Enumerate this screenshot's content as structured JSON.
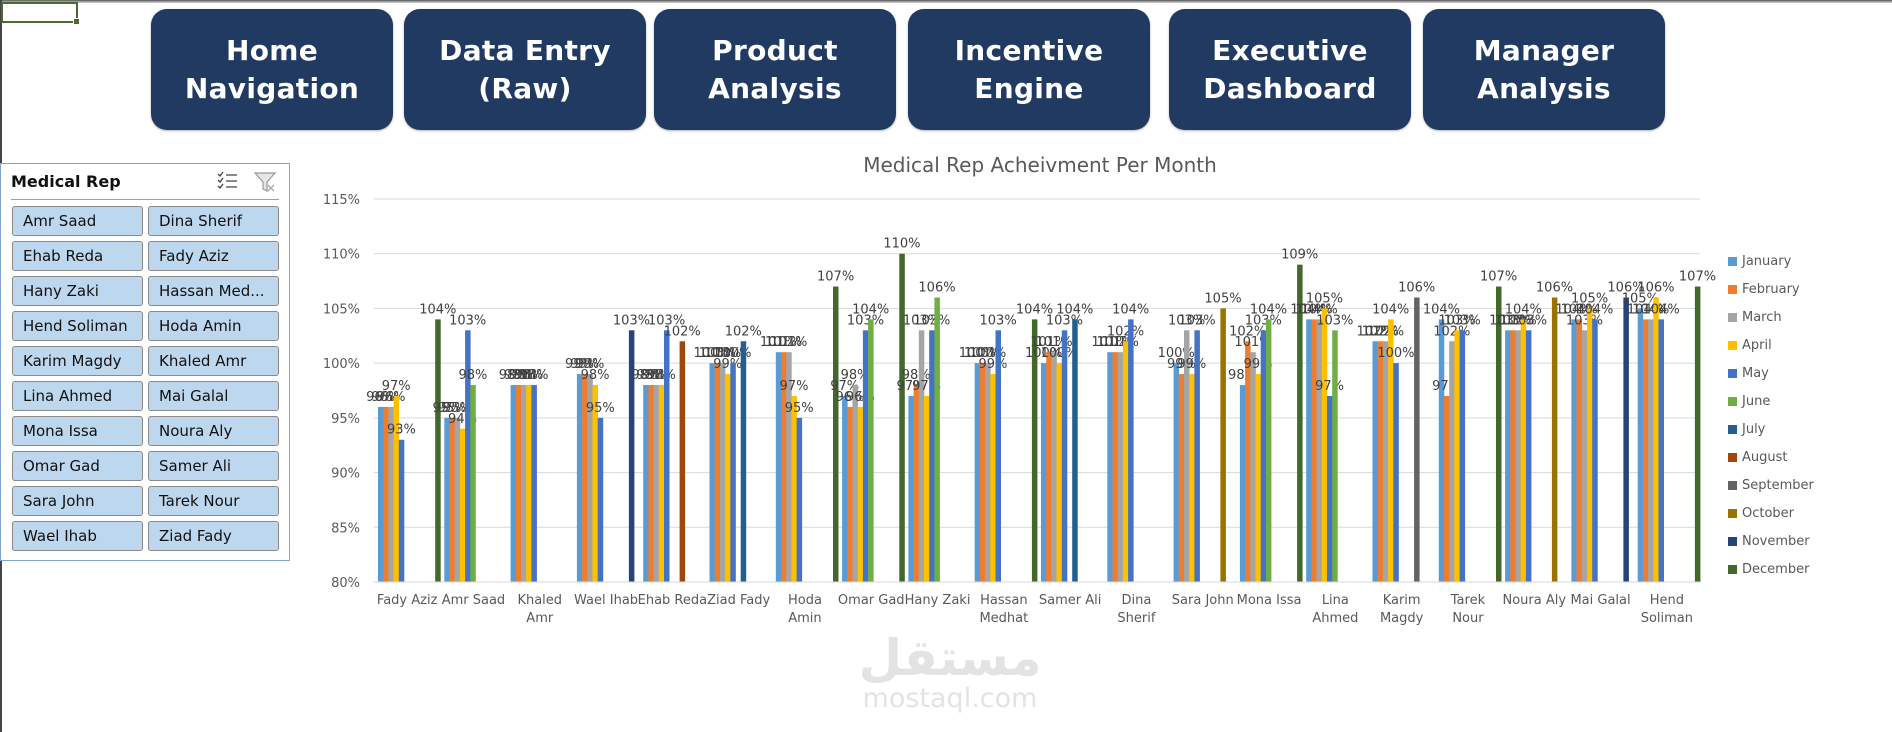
{
  "nav": {
    "buttons": [
      {
        "label": "Home\nNavigation"
      },
      {
        "label": "Data Entry\n(Raw)"
      },
      {
        "label": "Product\nAnalysis"
      },
      {
        "label": "Incentive\nEngine"
      },
      {
        "label": "Executive\nDashboard"
      },
      {
        "label": "Manager\nAnalysis"
      }
    ]
  },
  "slicer": {
    "title": "Medical Rep",
    "multi_select_icon": "multi-select-icon",
    "clear_filter_icon": "clear-filter-icon",
    "items": [
      "Amr Saad",
      "Dina Sherif",
      "Ehab Reda",
      "Fady Aziz",
      "Hany Zaki",
      "Hassan Med...",
      "Hend Soliman",
      "Hoda Amin",
      "Karim Magdy",
      "Khaled Amr",
      "Lina Ahmed",
      "Mai Galal",
      "Mona Issa",
      "Noura Aly",
      "Omar Gad",
      "Samer Ali",
      "Sara John",
      "Tarek Nour",
      "Wael Ihab",
      "Ziad Fady"
    ]
  },
  "watermark": {
    "arabic": "مستقل",
    "latin": "mostaql.com"
  },
  "chart_data": {
    "type": "bar",
    "title": "Medical Rep Acheivment Per Month",
    "xlabel": "",
    "ylabel": "",
    "ylim": [
      0.8,
      1.15
    ],
    "yticks": [
      0.8,
      0.85,
      0.9,
      0.95,
      1.0,
      1.05,
      1.1,
      1.15
    ],
    "ytick_labels": [
      "80%",
      "85%",
      "90%",
      "95%",
      "100%",
      "105%",
      "110%",
      "115%"
    ],
    "grid": true,
    "legend_position": "right",
    "categories": [
      "Fady Aziz",
      "Amr Saad",
      "Khaled Amr",
      "Wael Ihab",
      "Ehab Reda",
      "Ziad Fady",
      "Hoda Amin",
      "Omar Gad",
      "Hany Zaki",
      "Hassan Medhat",
      "Samer Ali",
      "Dina Sherif",
      "Sara John",
      "Mona Issa",
      "Lina Ahmed",
      "Karim Magdy",
      "Tarek Nour",
      "Noura Aly",
      "Mai Galal",
      "Hend Soliman"
    ],
    "category_labels": [
      "Fady Aziz",
      "Amr Saad",
      "Khaled\nAmr",
      "Wael Ihab",
      "Ehab Reda",
      "Ziad Fady",
      "Hoda\nAmin",
      "Omar Gad",
      "Hany Zaki",
      "Hassan\nMedhat",
      "Samer Ali",
      "Dina\nSherif",
      "Sara John",
      "Mona Issa",
      "Lina\nAhmed",
      "Karim\nMagdy",
      "Tarek\nNour",
      "Noura Aly",
      "Mai Galal",
      "Hend\nSoliman"
    ],
    "series": [
      {
        "name": "January",
        "color": "#5b9bd5",
        "values": [
          0.96,
          0.95,
          0.98,
          0.99,
          0.98,
          1.0,
          1.01,
          0.97,
          0.97,
          1.0,
          1.0,
          1.01,
          1.0,
          0.98,
          1.04,
          1.02,
          1.04,
          1.03,
          1.04,
          1.05
        ]
      },
      {
        "name": "February",
        "color": "#ed7d31",
        "values": [
          0.96,
          0.95,
          0.98,
          0.99,
          0.98,
          1.0,
          1.01,
          0.96,
          0.98,
          1.0,
          1.01,
          1.01,
          0.99,
          1.02,
          1.04,
          1.02,
          0.97,
          1.03,
          1.04,
          1.04
        ]
      },
      {
        "name": "March",
        "color": "#a5a5a5",
        "values": [
          0.96,
          0.95,
          0.98,
          0.99,
          0.98,
          1.0,
          1.01,
          0.98,
          1.03,
          1.0,
          1.01,
          1.01,
          1.03,
          1.01,
          1.04,
          1.02,
          1.02,
          1.03,
          1.03,
          1.04
        ]
      },
      {
        "name": "April",
        "color": "#ffc000",
        "values": [
          0.97,
          0.94,
          0.98,
          0.98,
          0.98,
          0.99,
          0.97,
          0.96,
          0.97,
          0.99,
          1.0,
          1.02,
          0.99,
          0.99,
          1.05,
          1.04,
          1.03,
          1.04,
          1.05,
          1.06
        ]
      },
      {
        "name": "May",
        "color": "#4472c4",
        "values": [
          0.93,
          1.03,
          0.98,
          0.95,
          1.03,
          1.0,
          0.95,
          1.03,
          1.03,
          1.03,
          1.03,
          1.04,
          1.03,
          1.03,
          0.97,
          1.0,
          1.03,
          1.03,
          1.04,
          1.04
        ]
      },
      {
        "name": "June",
        "color": "#70ad47",
        "values": [
          null,
          0.98,
          null,
          null,
          null,
          null,
          null,
          1.04,
          1.06,
          null,
          null,
          null,
          null,
          1.04,
          1.03,
          null,
          null,
          null,
          null,
          null
        ]
      },
      {
        "name": "July",
        "color": "#255e91",
        "values": [
          null,
          null,
          null,
          null,
          null,
          1.02,
          null,
          null,
          null,
          null,
          1.04,
          null,
          null,
          null,
          null,
          null,
          null,
          null,
          null,
          null
        ]
      },
      {
        "name": "August",
        "color": "#9e480e",
        "values": [
          null,
          null,
          null,
          null,
          1.02,
          null,
          null,
          null,
          null,
          null,
          null,
          null,
          null,
          null,
          null,
          null,
          null,
          null,
          null,
          null
        ]
      },
      {
        "name": "September",
        "color": "#636363",
        "values": [
          null,
          null,
          null,
          null,
          null,
          null,
          null,
          null,
          null,
          null,
          null,
          null,
          null,
          null,
          null,
          1.06,
          null,
          null,
          null,
          null
        ]
      },
      {
        "name": "October",
        "color": "#997300",
        "values": [
          null,
          null,
          null,
          null,
          null,
          null,
          null,
          null,
          null,
          null,
          null,
          null,
          1.05,
          null,
          null,
          null,
          null,
          1.06,
          null,
          null
        ]
      },
      {
        "name": "November",
        "color": "#264478",
        "values": [
          null,
          null,
          null,
          1.03,
          null,
          null,
          null,
          null,
          null,
          null,
          null,
          null,
          null,
          null,
          null,
          null,
          null,
          null,
          1.06,
          null
        ]
      },
      {
        "name": "December",
        "color": "#43682b",
        "values": [
          1.04,
          null,
          null,
          null,
          null,
          null,
          1.07,
          1.1,
          null,
          1.04,
          null,
          null,
          null,
          1.09,
          null,
          null,
          1.07,
          null,
          null,
          1.07
        ]
      }
    ]
  }
}
